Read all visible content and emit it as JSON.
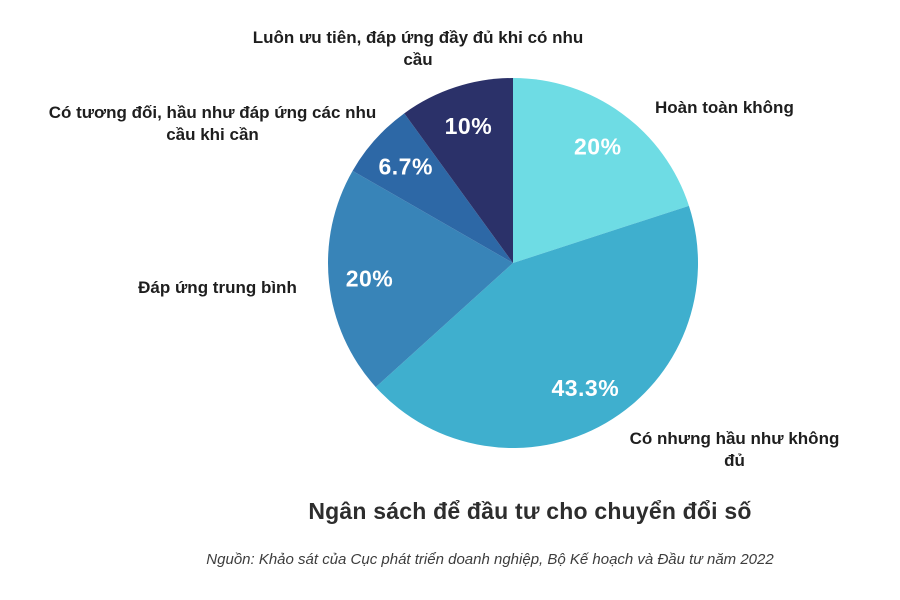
{
  "chart_data": {
    "type": "pie",
    "title": "Ngân sách để đầu tư cho chuyển đổi số",
    "source": "Nguồn: Khảo sát của Cục phát triển doanh nghiệp, Bộ Kế hoạch và Đầu tư năm 2022",
    "start_angle": "top",
    "direction": "clockwise",
    "legend_position": "labels-outside",
    "grid": false,
    "slices": [
      {
        "label": "Hoàn toàn không",
        "value": 20,
        "pct_label": "20%",
        "color": "#6edce4"
      },
      {
        "label": "Có nhưng hầu như không đủ",
        "value": 43.3,
        "pct_label": "43.3%",
        "color": "#3fafce"
      },
      {
        "label": "Đáp ứng trung bình",
        "value": 20,
        "pct_label": "20%",
        "color": "#3884b8"
      },
      {
        "label": "Có tương đối, hầu như đáp ứng các nhu cầu khi cần",
        "value": 6.7,
        "pct_label": "6.7%",
        "color": "#2d68a6"
      },
      {
        "label": "Luôn ưu tiên, đáp ứng đầy đủ khi có nhu cầu",
        "value": 10,
        "pct_label": "10%",
        "color": "#2b3169"
      }
    ]
  }
}
